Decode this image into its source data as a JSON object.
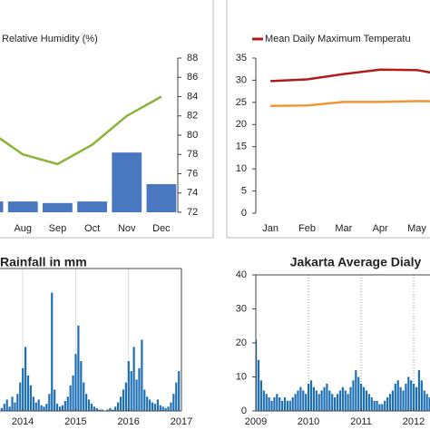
{
  "chart_data": [
    {
      "type": "bar",
      "categories": [
        null,
        "Aug",
        "Sep",
        "Oct",
        "Nov",
        "Dec"
      ],
      "series": [
        {
          "color": "#4a78c0",
          "values": [
            28,
            28,
            24,
            28,
            155,
            73
          ]
        },
        {
          "name": "Relative Humidity (%)",
          "color": "#8db33a",
          "axis": "y2",
          "values": [
            80.5,
            78,
            77,
            79,
            82,
            84
          ]
        }
      ],
      "ylim": [
        0,
        400
      ],
      "y2lim": [
        72,
        88
      ],
      "y2ticks": [
        72,
        74,
        76,
        78,
        80,
        82,
        84,
        86,
        88
      ]
    },
    {
      "type": "line",
      "categories": [
        "Jan",
        "Feb",
        "Mar",
        "Apr",
        "May",
        null
      ],
      "series": [
        {
          "name": "Mean Daily Maximum Temperatu",
          "color": "#b01c1c",
          "values": [
            29.8,
            30.2,
            31.4,
            32.4,
            32.3,
            30.8
          ]
        },
        {
          "color": "#f0953a",
          "values": [
            24.2,
            24.3,
            25.1,
            25.1,
            25.3,
            25.2
          ]
        }
      ],
      "ylim": [
        0,
        35
      ],
      "yticks": [
        0,
        5,
        10,
        15,
        20,
        25,
        30,
        35
      ]
    },
    {
      "type": "bar",
      "title": "Rainfall in mm",
      "color": "#1f6fb4",
      "x": [
        2013.6,
        2013.65,
        2013.7,
        2013.75,
        2013.8,
        2013.85,
        2013.9,
        2013.95,
        2014,
        2014.05,
        2014.1,
        2014.15,
        2014.2,
        2014.25,
        2014.3,
        2014.35,
        2014.4,
        2014.45,
        2014.5,
        2014.55,
        2014.6,
        2014.65,
        2014.7,
        2014.75,
        2014.8,
        2014.85,
        2014.9,
        2014.95,
        2015,
        2015.05,
        2015.1,
        2015.15,
        2015.2,
        2015.25,
        2015.3,
        2015.35,
        2015.4,
        2015.45,
        2015.5,
        2015.55,
        2015.6,
        2015.65,
        2015.7,
        2015.75,
        2015.8,
        2015.85,
        2015.9,
        2015.95,
        2016,
        2016.05,
        2016.1,
        2016.15,
        2016.2,
        2016.25,
        2016.3,
        2016.35,
        2016.4,
        2016.45,
        2016.5,
        2016.55,
        2016.6,
        2016.65,
        2016.7,
        2016.75,
        2016.8,
        2016.85,
        2016.9,
        2016.95
      ],
      "values": [
        2,
        5,
        8,
        3,
        10,
        6,
        12,
        20,
        30,
        45,
        25,
        18,
        10,
        6,
        8,
        4,
        3,
        5,
        12,
        83,
        15,
        5,
        3,
        4,
        7,
        10,
        18,
        25,
        40,
        60,
        35,
        20,
        12,
        8,
        5,
        3,
        2,
        1,
        1,
        0,
        1,
        2,
        1,
        3,
        6,
        10,
        15,
        20,
        35,
        28,
        45,
        22,
        30,
        50,
        15,
        10,
        8,
        6,
        5,
        8,
        4,
        3,
        2,
        3,
        6,
        12,
        20,
        28
      ],
      "xlim": [
        2013.57,
        2017
      ],
      "xticks": [
        2014,
        2015,
        2016,
        2017
      ],
      "ylim": [
        0,
        100
      ],
      "grid": true
    },
    {
      "type": "bar",
      "title": "Jakarta Average Dialy",
      "color": "#1f6fb4",
      "x": [
        2009,
        2009.05,
        2009.1,
        2009.15,
        2009.2,
        2009.25,
        2009.3,
        2009.35,
        2009.4,
        2009.45,
        2009.5,
        2009.55,
        2009.6,
        2009.65,
        2009.7,
        2009.75,
        2009.8,
        2009.85,
        2009.9,
        2009.95,
        2010,
        2010.05,
        2010.1,
        2010.15,
        2010.2,
        2010.25,
        2010.3,
        2010.35,
        2010.4,
        2010.45,
        2010.5,
        2010.55,
        2010.6,
        2010.65,
        2010.7,
        2010.75,
        2010.8,
        2010.85,
        2010.9,
        2010.95,
        2011,
        2011.05,
        2011.1,
        2011.15,
        2011.2,
        2011.25,
        2011.3,
        2011.35,
        2011.4,
        2011.45,
        2011.5,
        2011.55,
        2011.6,
        2011.65,
        2011.7,
        2011.75,
        2011.8,
        2011.85,
        2011.9,
        2011.95,
        2012,
        2012.05,
        2012.1,
        2012.15,
        2012.2,
        2012.25,
        2012.3
      ],
      "values": [
        21,
        15,
        9,
        6,
        5,
        4,
        3,
        4,
        5,
        4,
        3,
        4,
        3,
        3,
        4,
        5,
        6,
        7,
        6,
        5,
        8,
        9,
        7,
        6,
        5,
        6,
        7,
        8,
        6,
        5,
        4,
        5,
        6,
        7,
        6,
        5,
        7,
        9,
        12,
        10,
        8,
        7,
        6,
        5,
        4,
        3,
        3,
        2,
        2,
        3,
        4,
        5,
        6,
        8,
        9,
        7,
        6,
        8,
        10,
        9,
        8,
        7,
        12,
        9,
        6,
        5,
        4
      ],
      "xlim": [
        2009,
        2012.31
      ],
      "xticks": [
        2009,
        2010,
        2011,
        2012
      ],
      "ylim": [
        0,
        40
      ],
      "yticks": [
        0,
        10,
        20,
        30,
        40
      ],
      "grid": true
    }
  ]
}
